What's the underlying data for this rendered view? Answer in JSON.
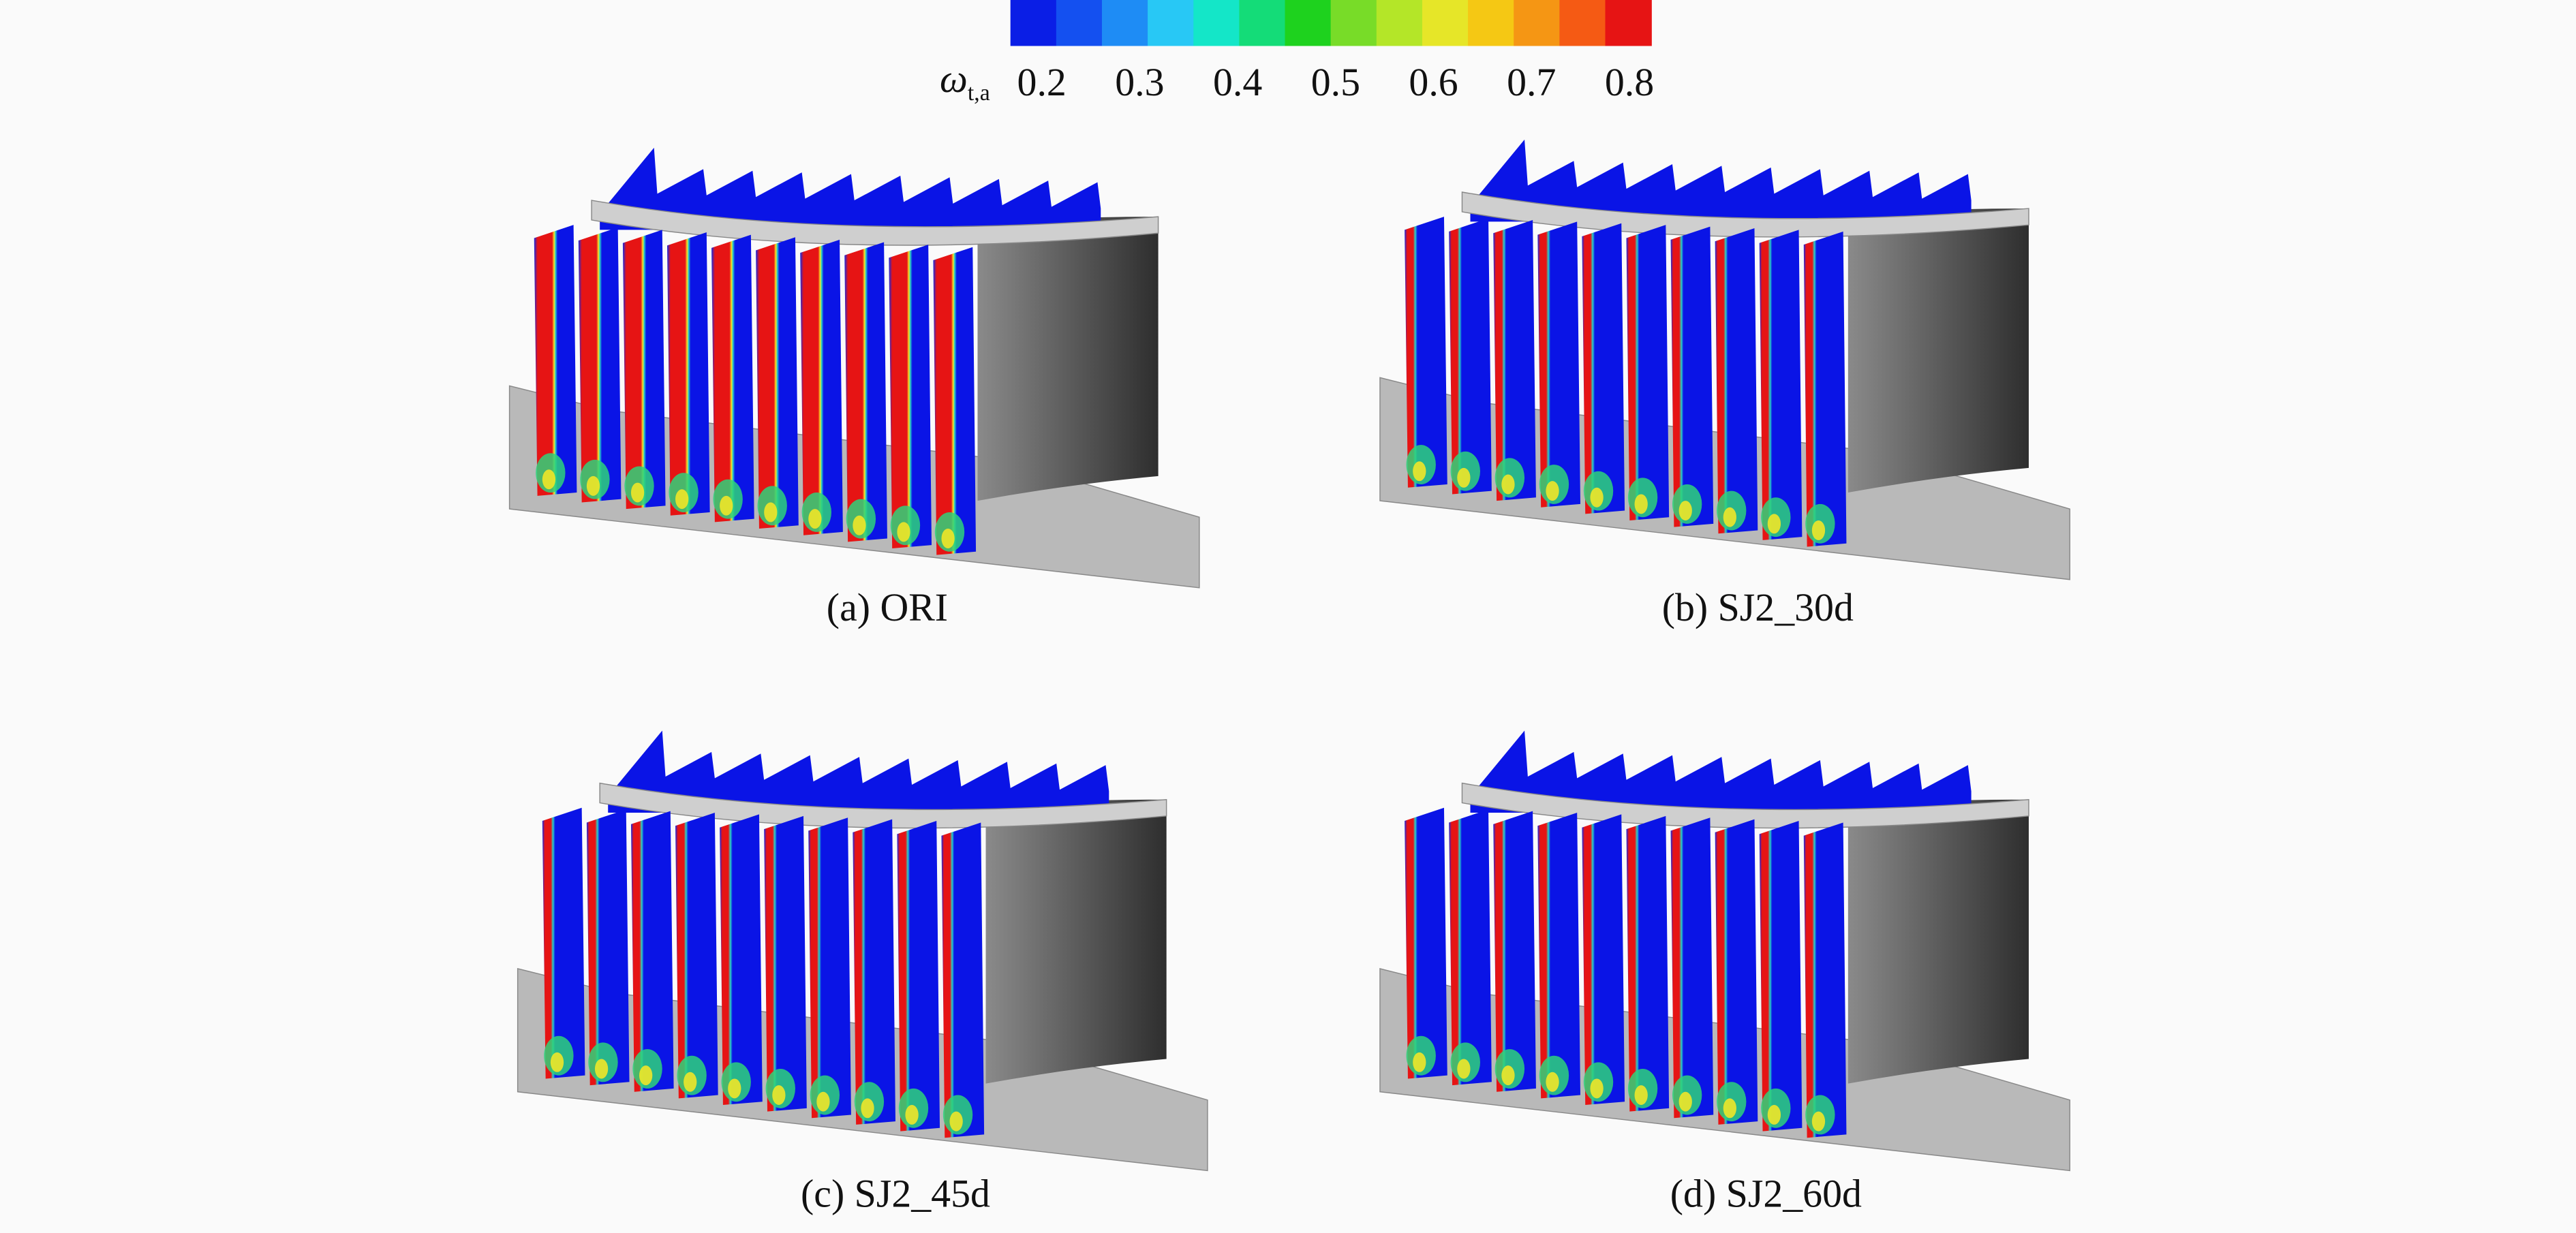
{
  "colorbar": {
    "label": "ω",
    "label_subscript": "t,a",
    "ticks": [
      0.2,
      0.3,
      0.4,
      0.5,
      0.6,
      0.7,
      0.8
    ],
    "range": [
      0.168,
      0.822
    ],
    "colors": [
      "#0a1ee6",
      "#1450f0",
      "#1e8cf5",
      "#28c8f5",
      "#14e6c8",
      "#14dc78",
      "#1ed21e",
      "#78dc28",
      "#b4e628",
      "#e6e628",
      "#f5c814",
      "#f59614",
      "#f55a14",
      "#e61414"
    ]
  },
  "panels": [
    {
      "caption": "(a) ORI"
    },
    {
      "caption": "(b) SJ2_30d"
    },
    {
      "caption": "(c) SJ2_45d"
    },
    {
      "caption": "(d) SJ2_60d"
    }
  ]
}
